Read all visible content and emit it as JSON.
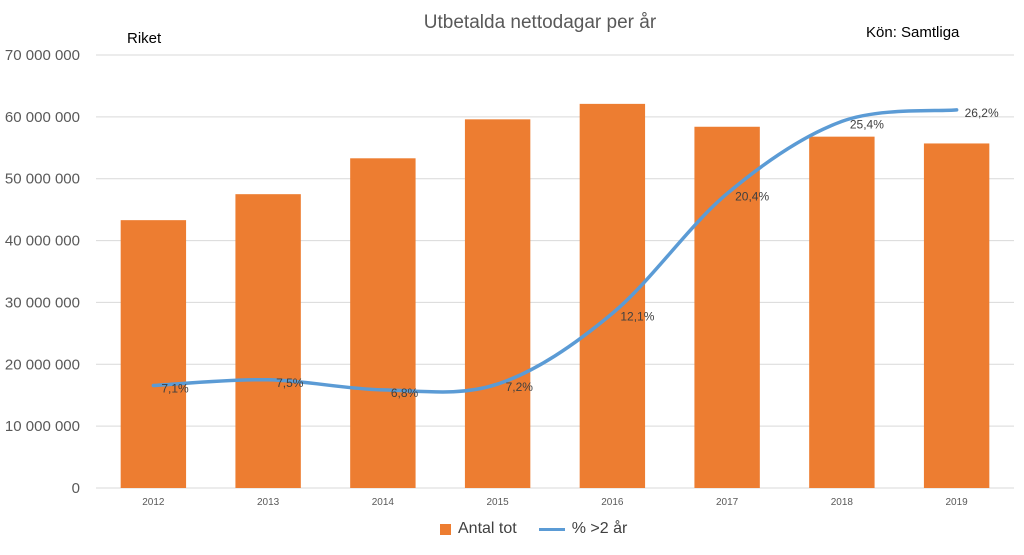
{
  "chart_data": {
    "type": "bar",
    "title": "Utbetalda nettodagar per år",
    "annotations": {
      "region": "Riket",
      "gender": "Kön: Samtliga"
    },
    "categories": [
      "2012",
      "2013",
      "2014",
      "2015",
      "2016",
      "2017",
      "2018",
      "2019"
    ],
    "series": [
      {
        "name": "Antal tot",
        "type": "bar",
        "values": [
          43300000,
          47500000,
          53300000,
          59600000,
          62100000,
          58400000,
          56800000,
          55700000
        ]
      },
      {
        "name": "% >2 år",
        "type": "line",
        "values": [
          7.1,
          7.5,
          6.8,
          7.2,
          12.1,
          20.4,
          25.4,
          26.2
        ],
        "labels": [
          "7,1%",
          "7,5%",
          "6,8%",
          "7,2%",
          "12,1%",
          "20,4%",
          "25,4%",
          "26,2%"
        ]
      }
    ],
    "ylim": [
      0,
      70000000
    ],
    "y_ticks": [
      0,
      10000000,
      20000000,
      30000000,
      40000000,
      50000000,
      60000000,
      70000000
    ],
    "y_tick_labels": [
      "0",
      "10 000 000",
      "20 000 000",
      "30 000 000",
      "40 000 000",
      "50 000 000",
      "60 000 000",
      "70 000 000"
    ],
    "secondary_ylim": [
      0,
      30
    ],
    "grid": true,
    "legend_position": "bottom",
    "colors": {
      "bars": "#ED7D31",
      "line": "#5B9BD5",
      "grid": "#D9D9D9",
      "text": "#595959"
    }
  }
}
